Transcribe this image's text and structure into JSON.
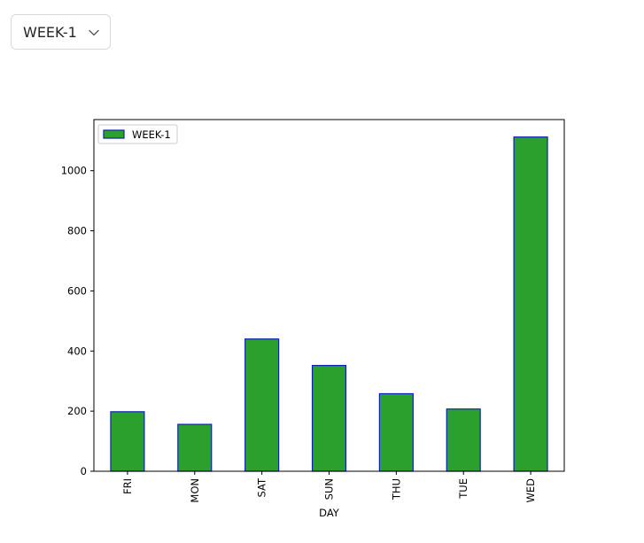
{
  "selector": {
    "selected_value": "WEEK-1",
    "icon": "chevron-down-icon"
  },
  "chart_data": {
    "type": "bar",
    "categories": [
      "FRI",
      "MON",
      "SAT",
      "SUN",
      "THU",
      "TUE",
      "WED"
    ],
    "series": [
      {
        "name": "WEEK-1",
        "values": [
          198,
          156,
          440,
          352,
          258,
          207,
          1112
        ]
      }
    ],
    "xlabel": "DAY",
    "ylabel": "",
    "ylim": [
      0,
      1170
    ],
    "yticks": [
      0,
      200,
      400,
      600,
      800,
      1000
    ],
    "legend": "top-left",
    "grid": false,
    "colors": {
      "bar_fill": "#2ca02c",
      "bar_edge": "#0b22b5",
      "axis": "#000000"
    }
  }
}
